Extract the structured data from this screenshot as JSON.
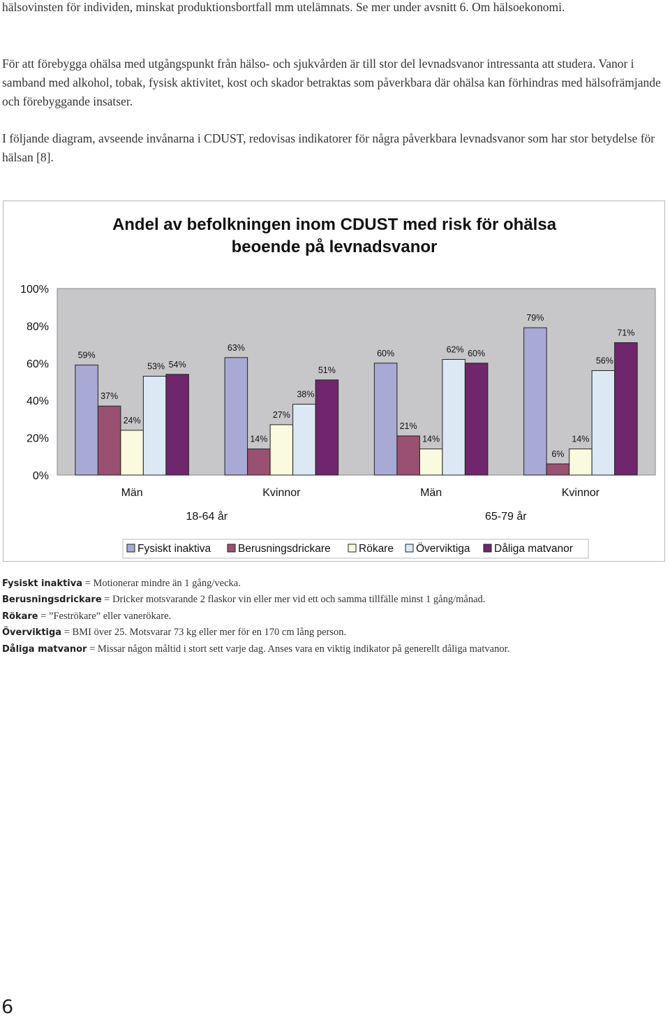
{
  "paragraphs": [
    "hälsovinsten för individen, minskat produktionsbortfall mm utelämnats. Se mer under avsnitt 6. Om hälsoekonomi.",
    "För att förebygga ohälsa med utgångspunkt från hälso- och sjukvården är till stor del levnadsvanor intressanta att studera. Vanor i samband med alkohol, tobak, fysisk aktivitet, kost och skador betraktas som påverkbara där ohälsa kan förhindras med hälsofrämjande och förebyggande insatser.",
    "I följande diagram, avseende invånarna i CDUST, redovisas indikatorer för några påverkbara levnadsvanor som har stor betydelse för hälsan [8]."
  ],
  "chart_data": {
    "type": "bar",
    "title_lines": [
      "Andel av befolkningen inom CDUST med risk för ohälsa",
      "beoende på levnadsvanor"
    ],
    "categories": [
      "Män",
      "Kvinnor",
      "Män",
      "Kvinnor"
    ],
    "age_groups": [
      "18-64 år",
      "65-79 år"
    ],
    "series": [
      {
        "name": "Fysiskt inaktiva",
        "color": "#a9a9d5",
        "values": [
          59,
          63,
          60,
          79
        ]
      },
      {
        "name": "Berusningsdrickare",
        "color": "#995071",
        "values": [
          37,
          14,
          21,
          6
        ]
      },
      {
        "name": "Rökare",
        "color": "#fafade",
        "values": [
          24,
          27,
          14,
          14
        ]
      },
      {
        "name": "Överviktiga",
        "color": "#dce9f5",
        "values": [
          53,
          38,
          62,
          56
        ]
      },
      {
        "name": "Dåliga matvanor",
        "color": "#6f266c",
        "values": [
          54,
          51,
          60,
          71
        ]
      }
    ],
    "yticks": [
      "0%",
      "20%",
      "40%",
      "60%",
      "80%",
      "100%"
    ],
    "ylim": [
      0,
      100
    ],
    "unit": "%",
    "legend_position": "bottom",
    "plot_background": "#c7c7c9"
  },
  "definitions": [
    {
      "term": "Fysiskt inaktiva",
      "text": " = Motionerar mindre än 1 gång/vecka."
    },
    {
      "term": "Berusningsdrickare",
      "text": " = Dricker motsvarande 2 flaskor vin eller mer vid ett och samma tillfälle minst 1 gång/månad."
    },
    {
      "term": "Rökare",
      "text": " = ”Feströkare” eller vanerökare."
    },
    {
      "term": "Överviktiga",
      "text": " = BMI över 25. Motsvarar 73 kg eller mer för en 170 cm lång person."
    },
    {
      "term": "Dåliga matvanor",
      "text": " = Missar någon måltid i stort sett varje dag. Anses vara en viktig indikator på generellt dåliga matvanor."
    }
  ],
  "page_number": "6"
}
